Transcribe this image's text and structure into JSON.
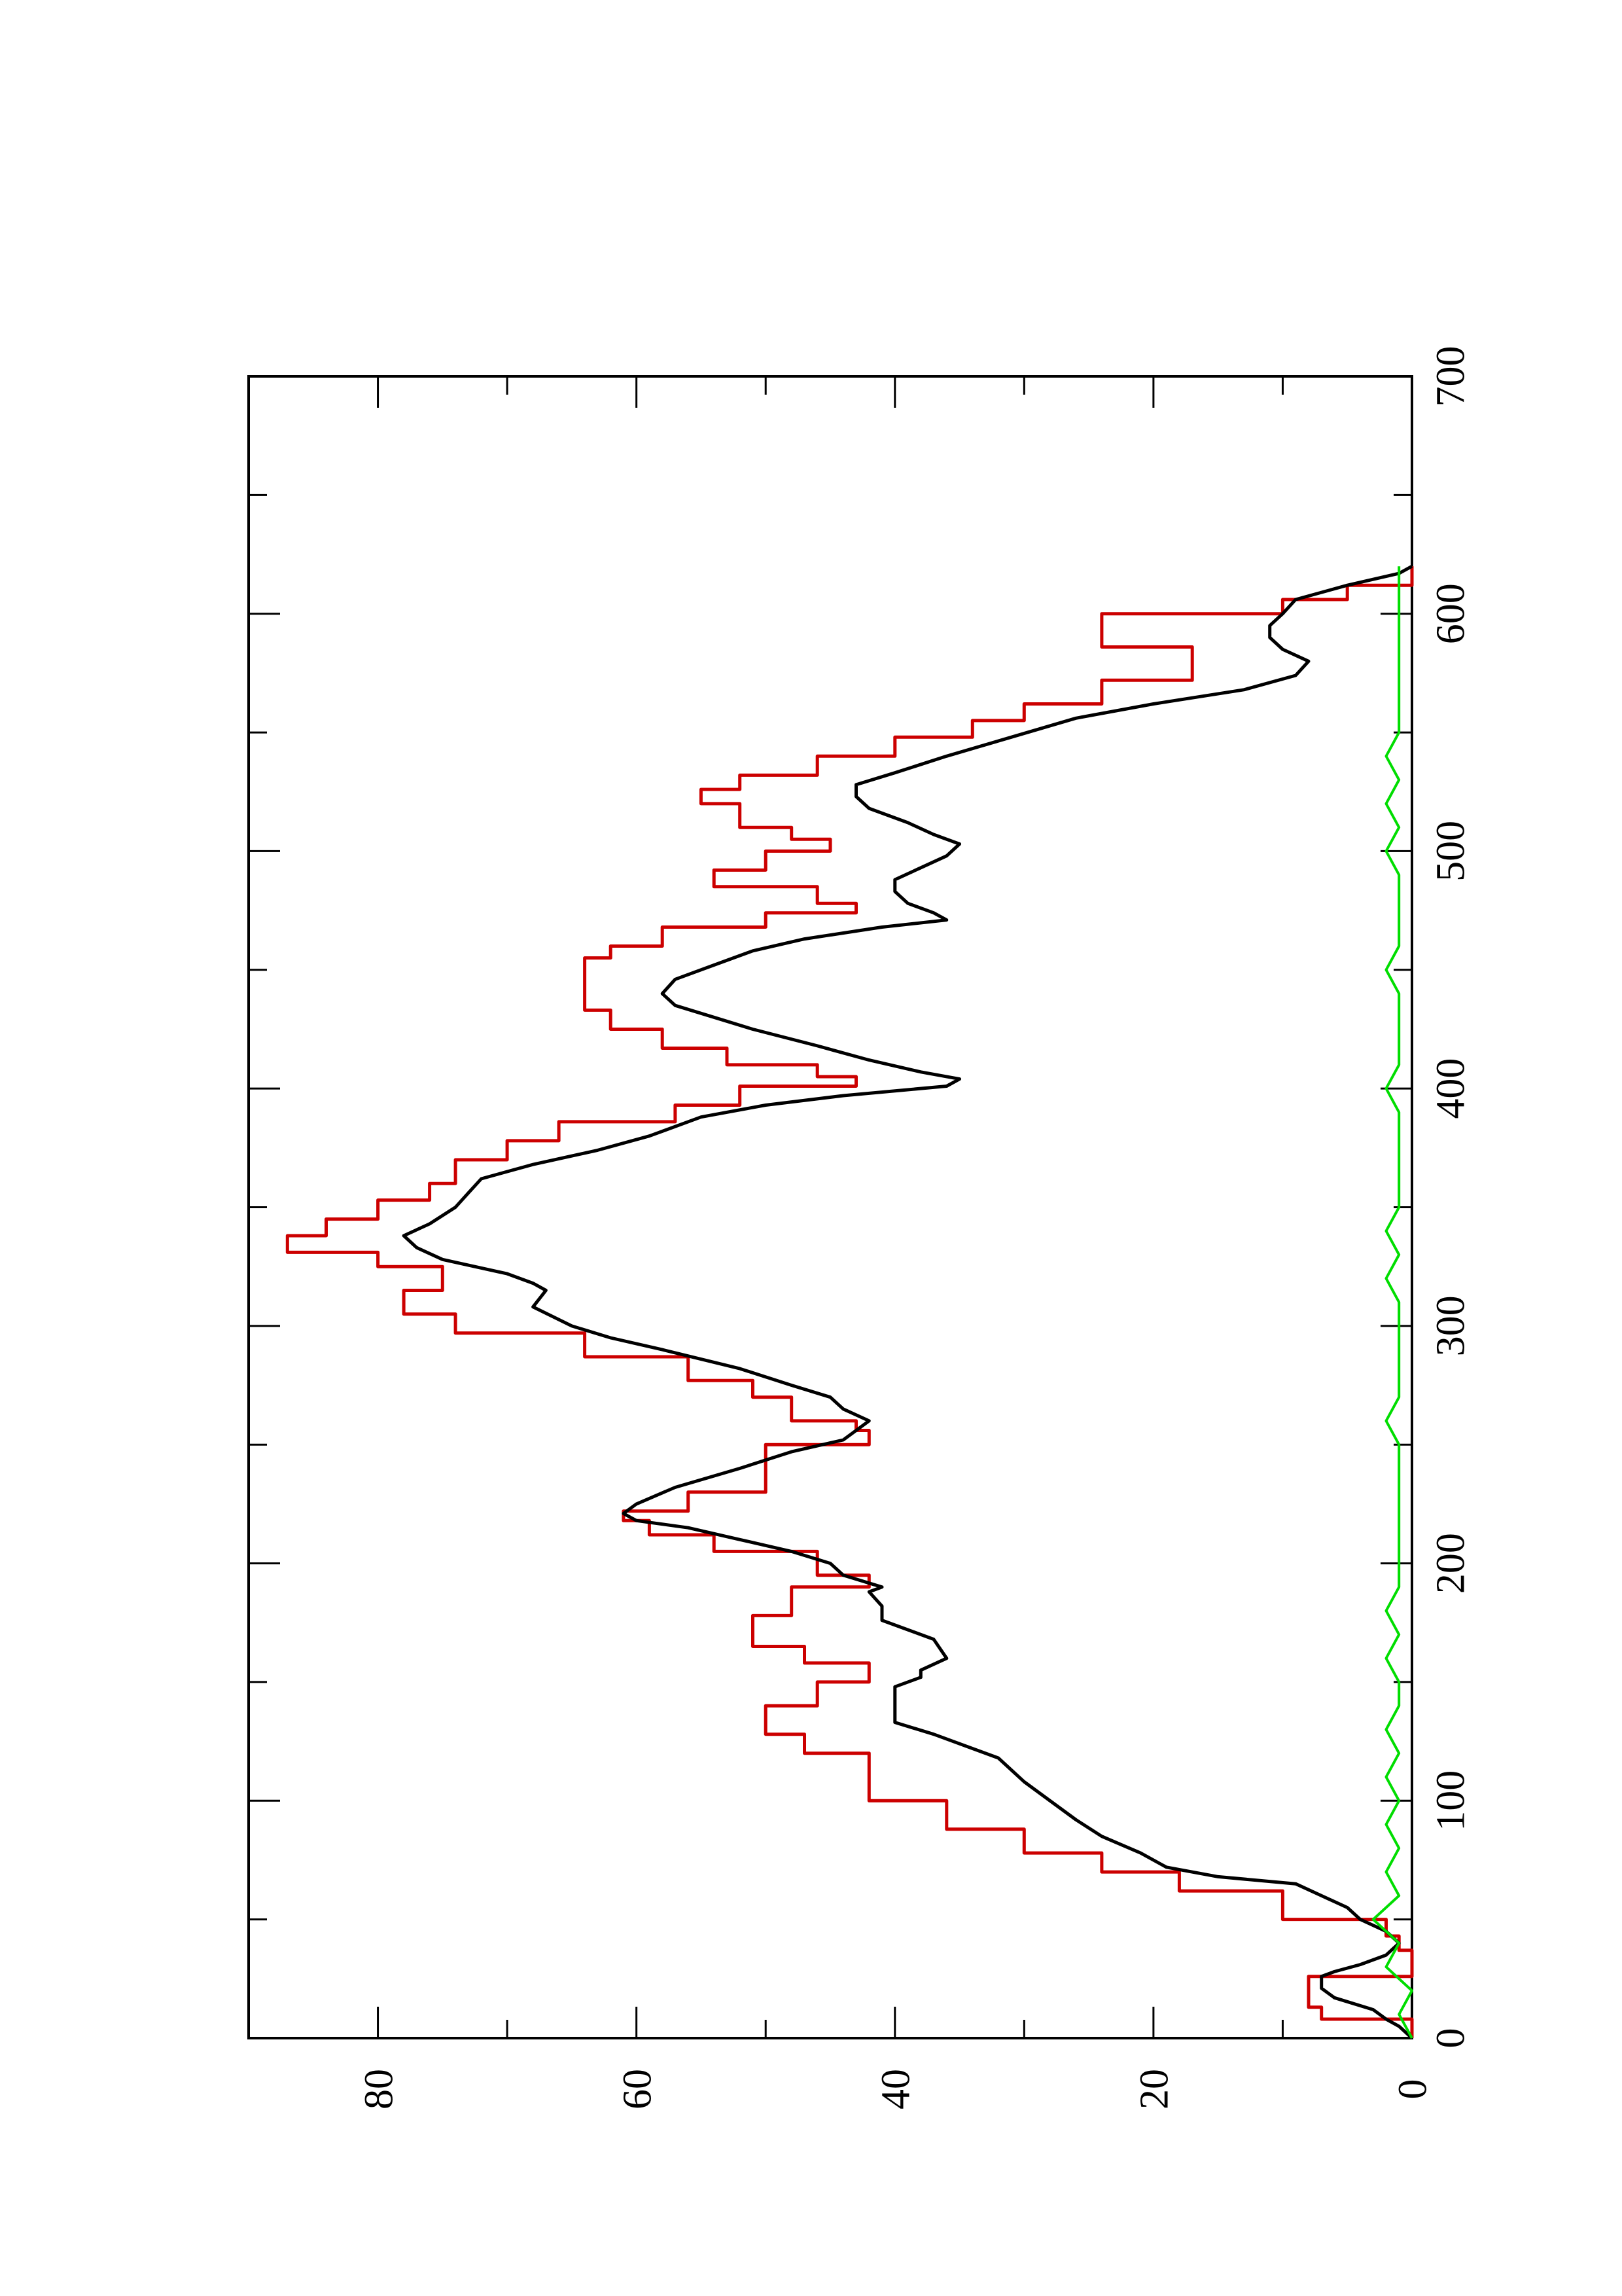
{
  "chart_data": {
    "type": "line",
    "title": "",
    "xlabel": "",
    "ylabel": "",
    "xlim": [
      0,
      700
    ],
    "ylim": [
      0,
      90
    ],
    "x_ticks": [
      0,
      100,
      200,
      300,
      400,
      500,
      600,
      700
    ],
    "y_ticks": [
      0,
      20,
      40,
      60,
      80
    ],
    "x_minor_step": 50,
    "y_minor_step": 10,
    "grid": false,
    "legend": "none",
    "rotation": "page rotated 90° counter-clockwise",
    "series": [
      {
        "color": "#cc0000",
        "style": "step",
        "points": [
          [
            0,
            0
          ],
          [
            8,
            0
          ],
          [
            8,
            7
          ],
          [
            13,
            7
          ],
          [
            13,
            8
          ],
          [
            19,
            8
          ],
          [
            19,
            8
          ],
          [
            26,
            8
          ],
          [
            26,
            0
          ],
          [
            37,
            0
          ],
          [
            37,
            1
          ],
          [
            43,
            1
          ],
          [
            43,
            2
          ],
          [
            50,
            2
          ],
          [
            50,
            10
          ],
          [
            62,
            10
          ],
          [
            62,
            18
          ],
          [
            70,
            18
          ],
          [
            70,
            24
          ],
          [
            78,
            24
          ],
          [
            78,
            30
          ],
          [
            88,
            30
          ],
          [
            88,
            36
          ],
          [
            100,
            36
          ],
          [
            100,
            42
          ],
          [
            120,
            42
          ],
          [
            120,
            47
          ],
          [
            128,
            47
          ],
          [
            128,
            50
          ],
          [
            140,
            50
          ],
          [
            140,
            46
          ],
          [
            150,
            46
          ],
          [
            150,
            42
          ],
          [
            158,
            42
          ],
          [
            158,
            47
          ],
          [
            165,
            47
          ],
          [
            165,
            51
          ],
          [
            178,
            51
          ],
          [
            178,
            48
          ],
          [
            190,
            48
          ],
          [
            190,
            42
          ],
          [
            195,
            42
          ],
          [
            195,
            46
          ],
          [
            205,
            46
          ],
          [
            205,
            54
          ],
          [
            212,
            54
          ],
          [
            212,
            59
          ],
          [
            218,
            59
          ],
          [
            218,
            61
          ],
          [
            222,
            61
          ],
          [
            222,
            56
          ],
          [
            230,
            56
          ],
          [
            230,
            50
          ],
          [
            250,
            50
          ],
          [
            250,
            42
          ],
          [
            256,
            42
          ],
          [
            256,
            43
          ],
          [
            260,
            43
          ],
          [
            260,
            48
          ],
          [
            270,
            48
          ],
          [
            270,
            51
          ],
          [
            277,
            51
          ],
          [
            277,
            56
          ],
          [
            287,
            56
          ],
          [
            287,
            64
          ],
          [
            297,
            64
          ],
          [
            297,
            74
          ],
          [
            305,
            74
          ],
          [
            305,
            78
          ],
          [
            315,
            78
          ],
          [
            315,
            75
          ],
          [
            325,
            75
          ],
          [
            325,
            80
          ],
          [
            331,
            80
          ],
          [
            331,
            87
          ],
          [
            338,
            87
          ],
          [
            338,
            84
          ],
          [
            345,
            84
          ],
          [
            345,
            80
          ],
          [
            353,
            80
          ],
          [
            353,
            76
          ],
          [
            360,
            76
          ],
          [
            360,
            74
          ],
          [
            370,
            74
          ],
          [
            370,
            70
          ],
          [
            378,
            70
          ],
          [
            378,
            66
          ],
          [
            386,
            66
          ],
          [
            386,
            57
          ],
          [
            393,
            57
          ],
          [
            393,
            52
          ],
          [
            401,
            52
          ],
          [
            401,
            43
          ],
          [
            405,
            43
          ],
          [
            405,
            46
          ],
          [
            410,
            46
          ],
          [
            410,
            53
          ],
          [
            417,
            53
          ],
          [
            417,
            58
          ],
          [
            425,
            58
          ],
          [
            425,
            62
          ],
          [
            433,
            62
          ],
          [
            433,
            64
          ],
          [
            455,
            64
          ],
          [
            455,
            62
          ],
          [
            460,
            62
          ],
          [
            460,
            58
          ],
          [
            468,
            58
          ],
          [
            468,
            50
          ],
          [
            474,
            50
          ],
          [
            474,
            43
          ],
          [
            478,
            43
          ],
          [
            478,
            46
          ],
          [
            485,
            46
          ],
          [
            485,
            54
          ],
          [
            492,
            54
          ],
          [
            492,
            50
          ],
          [
            500,
            50
          ],
          [
            500,
            45
          ],
          [
            505,
            45
          ],
          [
            505,
            48
          ],
          [
            510,
            48
          ],
          [
            510,
            52
          ],
          [
            520,
            52
          ],
          [
            520,
            55
          ],
          [
            526,
            55
          ],
          [
            526,
            52
          ],
          [
            532,
            52
          ],
          [
            532,
            46
          ],
          [
            540,
            46
          ],
          [
            540,
            40
          ],
          [
            548,
            40
          ],
          [
            548,
            34
          ],
          [
            555,
            34
          ],
          [
            555,
            30
          ],
          [
            562,
            30
          ],
          [
            562,
            24
          ],
          [
            572,
            24
          ],
          [
            572,
            17
          ],
          [
            586,
            17
          ],
          [
            586,
            24
          ],
          [
            600,
            24
          ],
          [
            600,
            10
          ],
          [
            606,
            10
          ],
          [
            606,
            5
          ],
          [
            612,
            5
          ],
          [
            612,
            0
          ],
          [
            620,
            0
          ]
        ]
      },
      {
        "color": "#000000",
        "style": "line",
        "points": [
          [
            0,
            0
          ],
          [
            5,
            1
          ],
          [
            8,
            2
          ],
          [
            12,
            3
          ],
          [
            17,
            6
          ],
          [
            21,
            7
          ],
          [
            26,
            7
          ],
          [
            28,
            6
          ],
          [
            31,
            4
          ],
          [
            35,
            2
          ],
          [
            40,
            1
          ],
          [
            45,
            2
          ],
          [
            50,
            4
          ],
          [
            55,
            5
          ],
          [
            60,
            7
          ],
          [
            65,
            9
          ],
          [
            68,
            15
          ],
          [
            72,
            19
          ],
          [
            78,
            21
          ],
          [
            85,
            24
          ],
          [
            92,
            26
          ],
          [
            100,
            28
          ],
          [
            108,
            30
          ],
          [
            118,
            32
          ],
          [
            128,
            37
          ],
          [
            133,
            40
          ],
          [
            140,
            40
          ],
          [
            148,
            40
          ],
          [
            152,
            38
          ],
          [
            155,
            38
          ],
          [
            160,
            36
          ],
          [
            168,
            37
          ],
          [
            176,
            41
          ],
          [
            182,
            41
          ],
          [
            188,
            42
          ],
          [
            190,
            41
          ],
          [
            195,
            44
          ],
          [
            200,
            45
          ],
          [
            205,
            48
          ],
          [
            210,
            52
          ],
          [
            215,
            56
          ],
          [
            218,
            60
          ],
          [
            221,
            61
          ],
          [
            225,
            60
          ],
          [
            232,
            57
          ],
          [
            240,
            52
          ],
          [
            247,
            48
          ],
          [
            252,
            44
          ],
          [
            256,
            43
          ],
          [
            260,
            42
          ],
          [
            265,
            44
          ],
          [
            270,
            45
          ],
          [
            275,
            48
          ],
          [
            282,
            52
          ],
          [
            290,
            58
          ],
          [
            295,
            62
          ],
          [
            300,
            65
          ],
          [
            308,
            68
          ],
          [
            315,
            67
          ],
          [
            318,
            68
          ],
          [
            322,
            70
          ],
          [
            328,
            75
          ],
          [
            333,
            77
          ],
          [
            338,
            78
          ],
          [
            343,
            76
          ],
          [
            350,
            74
          ],
          [
            356,
            73
          ],
          [
            362,
            72
          ],
          [
            368,
            68
          ],
          [
            374,
            63
          ],
          [
            380,
            59
          ],
          [
            388,
            55
          ],
          [
            393,
            50
          ],
          [
            397,
            44
          ],
          [
            401,
            36
          ],
          [
            404,
            35
          ],
          [
            407,
            38
          ],
          [
            412,
            42
          ],
          [
            418,
            46
          ],
          [
            425,
            51
          ],
          [
            430,
            54
          ],
          [
            435,
            57
          ],
          [
            440,
            58
          ],
          [
            446,
            57
          ],
          [
            452,
            54
          ],
          [
            458,
            51
          ],
          [
            463,
            47
          ],
          [
            468,
            41
          ],
          [
            471,
            36
          ],
          [
            474,
            37
          ],
          [
            478,
            39
          ],
          [
            483,
            40
          ],
          [
            488,
            40
          ],
          [
            493,
            38
          ],
          [
            498,
            36
          ],
          [
            503,
            35
          ],
          [
            507,
            37
          ],
          [
            512,
            39
          ],
          [
            518,
            42
          ],
          [
            523,
            43
          ],
          [
            528,
            43
          ],
          [
            533,
            40
          ],
          [
            540,
            36
          ],
          [
            548,
            31
          ],
          [
            556,
            26
          ],
          [
            562,
            20
          ],
          [
            568,
            13
          ],
          [
            574,
            9
          ],
          [
            580,
            8
          ],
          [
            585,
            10
          ],
          [
            590,
            11
          ],
          [
            595,
            11
          ],
          [
            600,
            10
          ],
          [
            606,
            9
          ],
          [
            612,
            5
          ],
          [
            617,
            1
          ],
          [
            620,
            0
          ]
        ]
      },
      {
        "color": "#00dd00",
        "style": "noisy line near zero",
        "points": [
          [
            0,
            0
          ],
          [
            10,
            1
          ],
          [
            20,
            0
          ],
          [
            30,
            2
          ],
          [
            40,
            1
          ],
          [
            50,
            3
          ],
          [
            60,
            1
          ],
          [
            70,
            2
          ],
          [
            80,
            1
          ],
          [
            90,
            2
          ],
          [
            100,
            1
          ],
          [
            110,
            2
          ],
          [
            120,
            1
          ],
          [
            130,
            2
          ],
          [
            140,
            1
          ],
          [
            150,
            1
          ],
          [
            160,
            2
          ],
          [
            170,
            1
          ],
          [
            180,
            2
          ],
          [
            190,
            1
          ],
          [
            200,
            1
          ],
          [
            210,
            1
          ],
          [
            220,
            1
          ],
          [
            230,
            1
          ],
          [
            240,
            1
          ],
          [
            250,
            1
          ],
          [
            260,
            2
          ],
          [
            270,
            1
          ],
          [
            280,
            1
          ],
          [
            290,
            1
          ],
          [
            300,
            1
          ],
          [
            310,
            1
          ],
          [
            320,
            2
          ],
          [
            330,
            1
          ],
          [
            340,
            2
          ],
          [
            350,
            1
          ],
          [
            360,
            1
          ],
          [
            370,
            1
          ],
          [
            380,
            1
          ],
          [
            390,
            1
          ],
          [
            400,
            2
          ],
          [
            410,
            1
          ],
          [
            420,
            1
          ],
          [
            430,
            1
          ],
          [
            440,
            1
          ],
          [
            450,
            2
          ],
          [
            460,
            1
          ],
          [
            470,
            1
          ],
          [
            480,
            1
          ],
          [
            490,
            1
          ],
          [
            500,
            2
          ],
          [
            510,
            1
          ],
          [
            520,
            2
          ],
          [
            530,
            1
          ],
          [
            540,
            2
          ],
          [
            550,
            1
          ],
          [
            560,
            1
          ],
          [
            570,
            1
          ],
          [
            580,
            1
          ],
          [
            590,
            1
          ],
          [
            600,
            1
          ],
          [
            610,
            1
          ],
          [
            620,
            1
          ]
        ]
      }
    ]
  }
}
